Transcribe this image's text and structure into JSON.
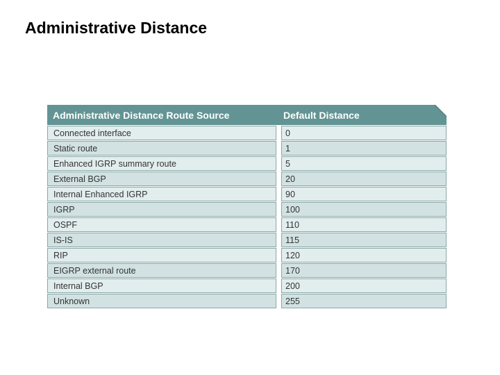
{
  "slide_title": "Administrative Distance",
  "table": {
    "headers": {
      "source": "Administrative Distance Route Source",
      "distance": "Default Distance"
    },
    "rows": [
      {
        "source": "Connected interface",
        "distance": "0"
      },
      {
        "source": "Static route",
        "distance": "1"
      },
      {
        "source": "Enhanced IGRP summary route",
        "distance": "5"
      },
      {
        "source": "External BGP",
        "distance": "20"
      },
      {
        "source": "Internal Enhanced IGRP",
        "distance": "90"
      },
      {
        "source": "IGRP",
        "distance": "100"
      },
      {
        "source": "OSPF",
        "distance": "110"
      },
      {
        "source": "IS-IS",
        "distance": "115"
      },
      {
        "source": "RIP",
        "distance": "120"
      },
      {
        "source": "EIGRP external route",
        "distance": "170"
      },
      {
        "source": "Internal BGP",
        "distance": "200"
      },
      {
        "source": "Unknown",
        "distance": "255"
      }
    ]
  },
  "colors": {
    "header_bg": "#639494",
    "row_light": "#e2eded",
    "row_dark": "#d2e2e2",
    "cell_border": "#8aa6a6",
    "header_text": "#ffffff",
    "body_text": "#333333",
    "title_text": "#000000"
  }
}
